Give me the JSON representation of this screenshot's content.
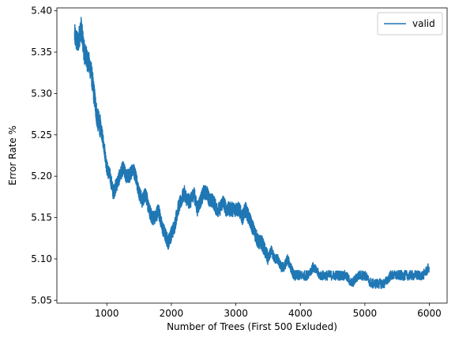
{
  "chart_data": {
    "type": "line",
    "title": "",
    "xlabel": "Number of Trees (First 500 Exluded)",
    "ylabel": "Error Rate %",
    "xlim": [
      225,
      6275
    ],
    "ylim": [
      5.0465,
      5.4035
    ],
    "xticks": [
      1000,
      2000,
      3000,
      4000,
      5000,
      6000
    ],
    "yticks": [
      5.05,
      5.1,
      5.15,
      5.2,
      5.25,
      5.3,
      5.35,
      5.4
    ],
    "ytick_labels": [
      "5.05",
      "5.10",
      "5.15",
      "5.20",
      "5.25",
      "5.30",
      "5.35",
      "5.40"
    ],
    "grid": false,
    "legend": {
      "position": "top-right",
      "entries": [
        "valid"
      ]
    },
    "series": [
      {
        "name": "valid",
        "color": "#1f77b4",
        "x": [
          500,
          550,
          600,
          650,
          700,
          750,
          800,
          850,
          900,
          950,
          1000,
          1050,
          1100,
          1150,
          1200,
          1250,
          1300,
          1350,
          1400,
          1450,
          1500,
          1550,
          1600,
          1650,
          1700,
          1750,
          1800,
          1850,
          1900,
          1950,
          2000,
          2050,
          2100,
          2150,
          2200,
          2250,
          2300,
          2350,
          2400,
          2450,
          2500,
          2550,
          2600,
          2650,
          2700,
          2750,
          2800,
          2850,
          2900,
          2950,
          3000,
          3050,
          3100,
          3150,
          3200,
          3250,
          3300,
          3350,
          3400,
          3450,
          3500,
          3550,
          3600,
          3650,
          3700,
          3750,
          3800,
          3850,
          3900,
          3950,
          4000,
          4100,
          4200,
          4300,
          4400,
          4500,
          4600,
          4700,
          4800,
          4900,
          5000,
          5100,
          5200,
          5300,
          5400,
          5500,
          5600,
          5700,
          5800,
          5900,
          6000
        ],
        "y": [
          5.37,
          5.36,
          5.38,
          5.35,
          5.34,
          5.33,
          5.3,
          5.27,
          5.26,
          5.24,
          5.21,
          5.2,
          5.18,
          5.19,
          5.2,
          5.21,
          5.2,
          5.2,
          5.21,
          5.2,
          5.18,
          5.17,
          5.18,
          5.16,
          5.15,
          5.15,
          5.16,
          5.14,
          5.13,
          5.12,
          5.13,
          5.14,
          5.16,
          5.17,
          5.18,
          5.17,
          5.17,
          5.18,
          5.16,
          5.17,
          5.18,
          5.18,
          5.17,
          5.17,
          5.16,
          5.16,
          5.17,
          5.16,
          5.16,
          5.16,
          5.16,
          5.16,
          5.15,
          5.16,
          5.15,
          5.14,
          5.13,
          5.12,
          5.12,
          5.11,
          5.1,
          5.11,
          5.1,
          5.1,
          5.09,
          5.09,
          5.1,
          5.09,
          5.08,
          5.08,
          5.08,
          5.08,
          5.09,
          5.08,
          5.08,
          5.08,
          5.08,
          5.08,
          5.07,
          5.08,
          5.08,
          5.07,
          5.07,
          5.07,
          5.08,
          5.08,
          5.08,
          5.08,
          5.08,
          5.08,
          5.09
        ]
      }
    ]
  }
}
